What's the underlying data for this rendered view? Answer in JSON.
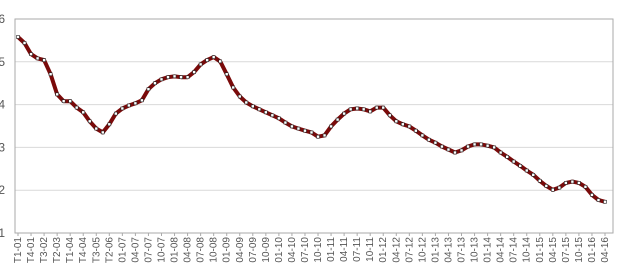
{
  "chart_data": {
    "type": "line",
    "categories": [
      "T1-01",
      null,
      "T4-01",
      null,
      "T3-02",
      null,
      "T2-03",
      null,
      "T1-04",
      null,
      "T4-04",
      null,
      "T3-05",
      null,
      "T2-06",
      null,
      "01-07",
      null,
      "04-07",
      null,
      "07-07",
      null,
      "10-07",
      null,
      "01-08",
      null,
      "04-08",
      null,
      "07-08",
      null,
      "10-08",
      null,
      "01-09",
      null,
      "04-09",
      null,
      "07-09",
      null,
      "10-09",
      null,
      "01-10",
      null,
      "04-10",
      null,
      "07-10",
      null,
      "10-10",
      null,
      "01-11",
      null,
      "04-11",
      null,
      "07-11",
      null,
      "10-11",
      null,
      "01-12",
      null,
      "04-12",
      null,
      "07-12",
      null,
      "10-12",
      null,
      "01-13",
      null,
      "04-13",
      null,
      "07-13",
      null,
      "10-13",
      null,
      "01-14",
      null,
      "04-14",
      null,
      "07-14",
      null,
      "10-14",
      null,
      "01-15",
      null,
      "04-15",
      null,
      "07-15",
      null,
      "10-15",
      null,
      "01-16",
      null,
      "04-16"
    ],
    "values": [
      5.58,
      5.44,
      5.18,
      5.08,
      5.04,
      4.71,
      4.24,
      4.08,
      4.08,
      3.93,
      3.82,
      3.61,
      3.44,
      3.35,
      3.54,
      3.79,
      3.91,
      3.98,
      4.03,
      4.1,
      4.36,
      4.5,
      4.59,
      4.64,
      4.66,
      4.64,
      4.64,
      4.76,
      4.94,
      5.04,
      5.11,
      5.01,
      4.71,
      4.4,
      4.19,
      4.05,
      3.96,
      3.89,
      3.82,
      3.75,
      3.68,
      3.58,
      3.49,
      3.44,
      3.39,
      3.35,
      3.25,
      3.28,
      3.49,
      3.65,
      3.79,
      3.89,
      3.91,
      3.89,
      3.84,
      3.93,
      3.93,
      3.75,
      3.61,
      3.54,
      3.49,
      3.39,
      3.28,
      3.18,
      3.11,
      3.02,
      2.95,
      2.88,
      2.93,
      3.02,
      3.07,
      3.07,
      3.04,
      3.0,
      2.88,
      2.78,
      2.67,
      2.57,
      2.46,
      2.36,
      2.22,
      2.1,
      2.01,
      2.06,
      2.17,
      2.2,
      2.17,
      2.08,
      1.89,
      1.77,
      1.73
    ],
    "color": "#7a0a0a",
    "ylim": [
      1,
      6
    ],
    "yticks": [
      1,
      2,
      3,
      4,
      5,
      6
    ],
    "grid": true
  }
}
